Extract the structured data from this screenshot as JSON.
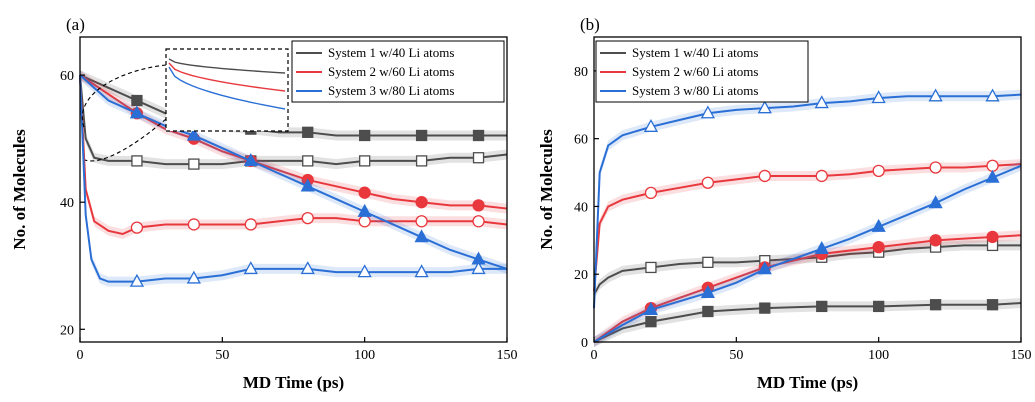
{
  "colors": {
    "system1": "#4d4d4d",
    "system2": "#e8383d",
    "system3": "#2a6fd6"
  },
  "chart_data": [
    {
      "type": "line",
      "panel_label": "(a)",
      "xlabel": "MD Time (ps)",
      "ylabel": "No. of Molecules",
      "xlim": [
        0,
        150
      ],
      "ylim": [
        18,
        66
      ],
      "xticks": [
        0,
        50,
        100,
        150
      ],
      "yticks": [
        20,
        40,
        60
      ],
      "legend": "top-right",
      "inset": "dashed zoom box, top-center",
      "series": [
        {
          "name": "System 1 w/40 Li atoms",
          "color_key": "system1",
          "marker": "square-filled",
          "x": [
            0,
            10,
            20,
            30,
            40,
            50,
            60,
            70,
            80,
            90,
            100,
            110,
            120,
            130,
            140,
            150
          ],
          "y": [
            60,
            58,
            56,
            54,
            53,
            52,
            51.5,
            51,
            51,
            50.5,
            50.5,
            50.5,
            50.5,
            50.5,
            50.5,
            50.5
          ]
        },
        {
          "name": "",
          "color_key": "system1",
          "marker": "square-open",
          "x": [
            0,
            2,
            5,
            10,
            20,
            30,
            40,
            50,
            60,
            70,
            80,
            90,
            100,
            110,
            120,
            130,
            140,
            150
          ],
          "y": [
            60,
            50,
            47,
            46.5,
            46.5,
            46,
            46,
            46,
            46.5,
            46.5,
            46.5,
            46,
            46.5,
            46.5,
            46.5,
            47,
            47,
            47.5
          ]
        },
        {
          "name": "System 2 w/60 Li atoms",
          "color_key": "system2",
          "marker": "circle-filled",
          "x": [
            0,
            10,
            20,
            30,
            40,
            50,
            60,
            70,
            80,
            90,
            100,
            110,
            120,
            130,
            140,
            150
          ],
          "y": [
            60,
            57,
            54,
            51.5,
            50,
            48,
            46.5,
            45,
            43.5,
            42.5,
            41.5,
            40.5,
            40,
            39.5,
            39.5,
            39
          ]
        },
        {
          "name": "",
          "color_key": "system2",
          "marker": "circle-open",
          "x": [
            0,
            2,
            5,
            10,
            15,
            20,
            30,
            40,
            50,
            60,
            70,
            80,
            90,
            100,
            110,
            120,
            130,
            140,
            150
          ],
          "y": [
            60,
            42,
            37,
            35.5,
            35,
            36,
            36.5,
            36.5,
            36.5,
            36.5,
            37,
            37.5,
            37.5,
            37,
            37,
            37,
            37,
            37,
            36.5
          ]
        },
        {
          "name": "System 3 w/80 Li atoms",
          "color_key": "system3",
          "marker": "triangle-filled",
          "x": [
            0,
            10,
            20,
            30,
            40,
            50,
            60,
            70,
            80,
            90,
            100,
            110,
            120,
            130,
            140,
            150
          ],
          "y": [
            60,
            56,
            54,
            52,
            50.5,
            48.5,
            46.5,
            44.5,
            42.5,
            40.5,
            38.5,
            36.5,
            34.5,
            32.5,
            31,
            29.5
          ]
        },
        {
          "name": "",
          "color_key": "system3",
          "marker": "triangle-open",
          "x": [
            0,
            2,
            4,
            7,
            10,
            20,
            30,
            40,
            50,
            60,
            70,
            80,
            90,
            100,
            110,
            120,
            130,
            140,
            150
          ],
          "y": [
            60,
            38,
            31,
            28,
            27.5,
            27.5,
            28,
            28,
            28.5,
            29.5,
            29.5,
            29.5,
            29,
            29,
            29,
            29,
            29,
            29.5,
            29.5
          ]
        }
      ]
    },
    {
      "type": "line",
      "panel_label": "(b)",
      "xlabel": "MD Time (ps)",
      "ylabel": "No. of Molecules",
      "xlim": [
        0,
        150
      ],
      "ylim": [
        0,
        90
      ],
      "xticks": [
        0,
        50,
        100,
        150
      ],
      "yticks": [
        0,
        20,
        40,
        60,
        80
      ],
      "legend": "top-left",
      "series": [
        {
          "name": "System 1 w/40 Li atoms",
          "color_key": "system1",
          "marker": "square-filled",
          "x": [
            0,
            5,
            10,
            20,
            30,
            40,
            50,
            60,
            80,
            100,
            120,
            140,
            150
          ],
          "y": [
            0,
            2,
            4,
            6,
            7.5,
            9,
            9.5,
            10,
            10.5,
            10.5,
            11,
            11,
            11.5
          ]
        },
        {
          "name": "",
          "color_key": "system1",
          "marker": "square-open",
          "x": [
            0,
            2,
            5,
            10,
            15,
            20,
            30,
            40,
            50,
            60,
            70,
            80,
            90,
            100,
            110,
            120,
            130,
            140,
            150
          ],
          "y": [
            14,
            17,
            19,
            21,
            21.5,
            22,
            23,
            23.5,
            23.5,
            24,
            24.5,
            25,
            26,
            26.5,
            27.5,
            28,
            28.5,
            28.5,
            28.5
          ]
        },
        {
          "name": "System 2 w/60 Li atoms",
          "color_key": "system2",
          "marker": "circle-filled",
          "x": [
            0,
            5,
            10,
            20,
            30,
            40,
            50,
            60,
            70,
            80,
            90,
            100,
            110,
            120,
            130,
            140,
            150
          ],
          "y": [
            0,
            3,
            6,
            10,
            13,
            16,
            19,
            22,
            24,
            26,
            27,
            28,
            29,
            30,
            30.5,
            31,
            31.5
          ]
        },
        {
          "name": "",
          "color_key": "system2",
          "marker": "circle-open",
          "x": [
            0,
            2,
            5,
            10,
            20,
            30,
            40,
            50,
            60,
            70,
            80,
            90,
            100,
            110,
            120,
            130,
            140,
            150
          ],
          "y": [
            15,
            35,
            40,
            42,
            44,
            45.5,
            47,
            48,
            49,
            49,
            49,
            49.5,
            50.5,
            51,
            51.5,
            51.5,
            52,
            52.5
          ]
        },
        {
          "name": "System 3 w/80 Li atoms",
          "color_key": "system3",
          "marker": "triangle-filled",
          "x": [
            0,
            10,
            20,
            30,
            40,
            50,
            60,
            70,
            80,
            90,
            100,
            110,
            120,
            130,
            140,
            150
          ],
          "y": [
            0,
            5,
            9.5,
            12,
            14.5,
            17.5,
            21.5,
            24.5,
            27.5,
            30.5,
            34,
            37.5,
            41,
            45,
            48.5,
            52
          ]
        },
        {
          "name": "",
          "color_key": "system3",
          "marker": "triangle-open",
          "x": [
            0,
            2,
            5,
            10,
            20,
            30,
            40,
            50,
            60,
            70,
            80,
            90,
            100,
            110,
            120,
            130,
            140,
            150
          ],
          "y": [
            10,
            50,
            58,
            61,
            63.5,
            65.5,
            67.5,
            68.5,
            69,
            69.5,
            70.5,
            71,
            72,
            72.5,
            72.5,
            72.5,
            72.5,
            73
          ]
        }
      ]
    }
  ]
}
